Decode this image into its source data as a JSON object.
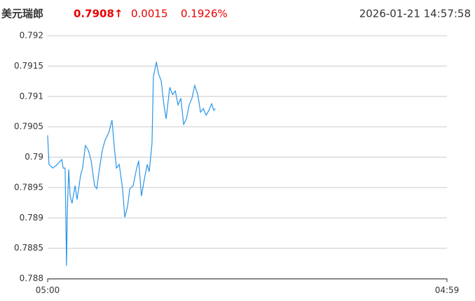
{
  "chart_data": {
    "type": "line",
    "title": "美元瑞郎",
    "price": "0.7908↑",
    "change": "0.0015",
    "change_percent": "0.1926%",
    "timestamp": "2026-01-21 14:57:58",
    "color": "#2a95e8",
    "up_color": "#e60000",
    "grid": true,
    "xlim": [
      0,
      1439
    ],
    "xticks": [
      {
        "value": 0,
        "label": "05:00"
      },
      {
        "value": 1439,
        "label": "04:59"
      }
    ],
    "ylim": [
      0.788,
      0.792
    ],
    "yticks": [
      0.788,
      0.7885,
      0.789,
      0.7895,
      0.79,
      0.7905,
      0.791,
      0.7915,
      0.792
    ],
    "x": [
      0,
      5,
      18,
      30,
      51,
      56,
      63,
      68,
      71,
      76,
      81,
      88,
      99,
      106,
      119,
      126,
      136,
      147,
      157,
      169,
      177,
      187,
      197,
      207,
      220,
      232,
      240,
      248,
      258,
      270,
      278,
      288,
      296,
      308,
      321,
      328,
      338,
      349,
      359,
      366,
      376,
      381,
      392,
      399,
      409,
      419,
      427,
      440,
      450,
      460,
      470,
      480,
      490,
      500,
      510,
      520,
      530,
      541,
      551,
      561,
      571,
      581,
      591,
      599,
      604
    ],
    "values": [
      0.79036,
      0.78988,
      0.78982,
      0.78986,
      0.78996,
      0.78982,
      0.78982,
      0.78821,
      0.78913,
      0.7898,
      0.78936,
      0.78924,
      0.78953,
      0.7893,
      0.78971,
      0.78982,
      0.79019,
      0.79011,
      0.78994,
      0.78953,
      0.78948,
      0.78982,
      0.79011,
      0.79028,
      0.7904,
      0.79061,
      0.79017,
      0.78982,
      0.78988,
      0.78948,
      0.78901,
      0.78919,
      0.78948,
      0.78953,
      0.78982,
      0.78994,
      0.78936,
      0.78965,
      0.78988,
      0.78976,
      0.79022,
      0.79132,
      0.79157,
      0.79138,
      0.79126,
      0.79086,
      0.79063,
      0.79115,
      0.79103,
      0.79109,
      0.79086,
      0.79097,
      0.79054,
      0.79063,
      0.79086,
      0.79097,
      0.79118,
      0.79103,
      0.79074,
      0.7908,
      0.79069,
      0.79077,
      0.79088,
      0.79077,
      0.7908
    ]
  }
}
